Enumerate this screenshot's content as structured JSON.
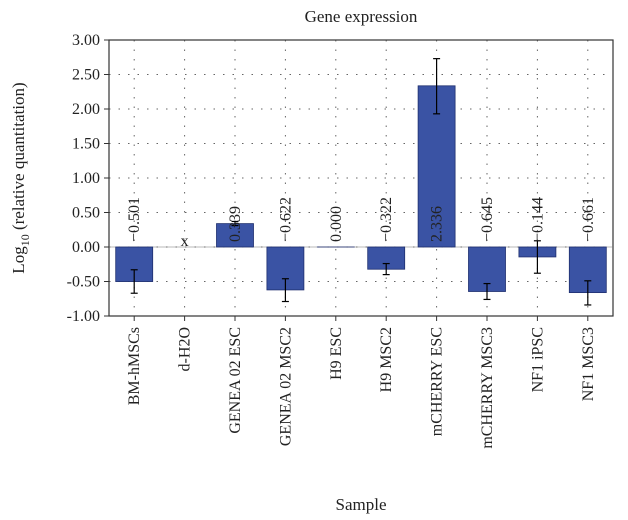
{
  "chart_data": {
    "type": "bar",
    "title": "Gene expression",
    "xlabel": "Sample",
    "ylabel_main": "Log",
    "ylabel_sub": "10",
    "ylabel_rest": " (relative quantitation)",
    "ylim": [
      -1.0,
      3.0
    ],
    "yticks": [
      "3.00",
      "2.50",
      "2.00",
      "1.50",
      "1.00",
      "0.50",
      "0.00",
      "-0.50",
      "-1.00"
    ],
    "ytick_values": [
      3.0,
      2.5,
      2.0,
      1.5,
      1.0,
      0.5,
      0.0,
      -0.5,
      -1.0
    ],
    "grid": true,
    "bar_color": "#3a53a4",
    "categories": [
      "BM-hMSCs",
      "d-H2O",
      "GENEA 02 ESC",
      "GENEA 02 MSC2",
      "H9 ESC",
      "H9 MSC2",
      "mCHERRY ESC",
      "mCHERRY MSC3",
      "NF1 iPSC",
      "NF1 MSC3"
    ],
    "values": [
      -0.501,
      null,
      0.339,
      -0.622,
      0.0,
      -0.322,
      2.336,
      -0.645,
      -0.144,
      -0.661
    ],
    "error_low": [
      -0.67,
      null,
      0.31,
      -0.79,
      0.0,
      -0.4,
      1.93,
      -0.76,
      -0.38,
      -0.84
    ],
    "error_high": [
      -0.33,
      null,
      0.37,
      -0.46,
      0.0,
      -0.24,
      2.73,
      -0.53,
      0.09,
      -0.49
    ],
    "value_labels": [
      "−0.501",
      "x",
      "0.339",
      "−0.622",
      "0.000",
      "−0.322",
      "2.336",
      "−0.645",
      "−0.144",
      "−0.661"
    ]
  }
}
